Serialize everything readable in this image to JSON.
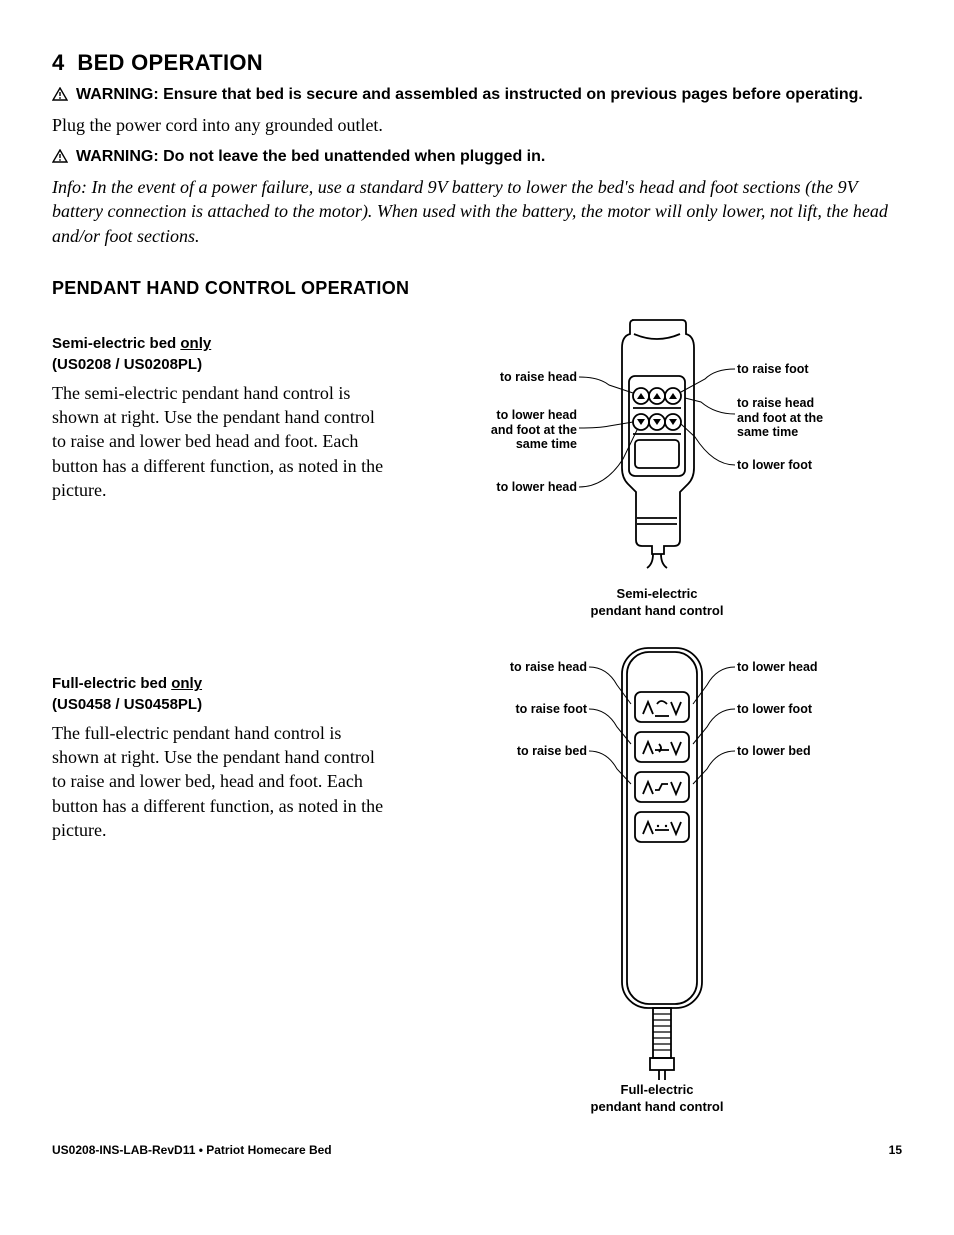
{
  "section": {
    "number": "4",
    "title": "BED OPERATION"
  },
  "warnings": {
    "w1": "WARNING: Ensure that bed is secure and assembled as instructed on previous pages before operating.",
    "w2": "WARNING: Do not leave the bed unattended when plugged in."
  },
  "body": {
    "plug": "Plug the power cord into any grounded outlet.",
    "info": "Info: In the event of a power failure, use a standard 9V battery to lower the bed's head and foot sections (the 9V battery connection is attached to the motor). When used with the battery, the motor will only lower, not lift, the head and/or foot sections."
  },
  "subsection": {
    "title": "PENDANT HAND CONTROL OPERATION"
  },
  "semi": {
    "head_pre": "Semi-electric bed ",
    "head_ul": "only",
    "head_post": " (US0208 / US0208PL)",
    "desc": "The semi-electric  pendant hand control is shown at right. Use the pendant hand control to raise and lower bed head and foot. Each button has a different function, as noted in the picture.",
    "caption_l1": "Semi-electric",
    "caption_l2": "pendant hand control",
    "labels": {
      "raise_head": "to raise head",
      "lower_head_foot_same": "to lower head\nand foot at the\nsame time",
      "lower_head": "to lower head",
      "raise_foot": "to raise foot",
      "raise_head_foot_same": "to raise head\nand foot at the\nsame time",
      "lower_foot": "to lower foot"
    }
  },
  "full": {
    "head_pre": "Full-electric bed ",
    "head_ul": "only",
    "head_post": " (US0458 / US0458PL)",
    "desc": "The full-electric  pendant hand control is shown at right. Use the pendant hand control to raise and lower bed, head and foot. Each button has a different function, as noted in the picture.",
    "caption_l1": "Full-electric",
    "caption_l2": "pendant hand control",
    "labels": {
      "raise_head": "to raise head",
      "raise_foot": "to raise foot",
      "raise_bed": "to raise bed",
      "lower_head": "to lower head",
      "lower_foot": "to lower foot",
      "lower_bed": "to lower bed"
    }
  },
  "footer": {
    "left": "US0208-INS-LAB-RevD11 • Patriot  Homecare Bed",
    "page": "15"
  },
  "style": {
    "stroke": "#000000",
    "bg": "#ffffff",
    "diagram_stroke_w": 1.8
  }
}
